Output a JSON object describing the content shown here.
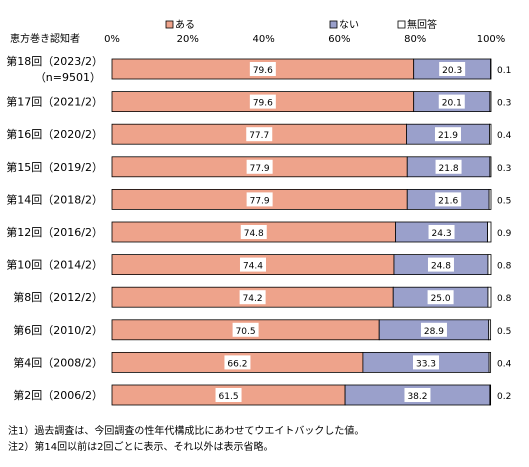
{
  "chart_data": {
    "type": "bar",
    "orientation": "horizontal",
    "stacked": true,
    "title": "",
    "category_header": "恵方巻き認知者",
    "categories": [
      "第18回（2023/2）",
      "第17回（2021/2）",
      "第16回（2020/2）",
      "第15回（2019/2）",
      "第14回（2018/2）",
      "第12回（2016/2）",
      "第10回（2014/2）",
      "第8回（2012/2）",
      "第6回（2010/2）",
      "第4回（2008/2）",
      "第2回（2006/2）"
    ],
    "first_category_sub": "（n=9501）",
    "series": [
      {
        "name": "ある",
        "color": "#eea38b",
        "values": [
          79.6,
          79.6,
          77.7,
          77.9,
          77.9,
          74.8,
          74.4,
          74.2,
          70.5,
          66.2,
          61.5
        ]
      },
      {
        "name": "ない",
        "color": "#9aa0cb",
        "values": [
          20.3,
          20.1,
          21.9,
          21.8,
          21.6,
          24.3,
          24.8,
          25.0,
          28.9,
          33.3,
          38.2
        ]
      },
      {
        "name": "無回答",
        "color": "#ffffff",
        "values": [
          0.1,
          0.3,
          0.4,
          0.3,
          0.5,
          0.9,
          0.8,
          0.8,
          0.5,
          0.4,
          0.2
        ]
      }
    ],
    "value_labels": [
      [
        "79.6",
        "20.3",
        "0.1"
      ],
      [
        "79.6",
        "20.1",
        "0.3"
      ],
      [
        "77.7",
        "21.9",
        "0.4"
      ],
      [
        "77.9",
        "21.8",
        "0.3"
      ],
      [
        "77.9",
        "21.6",
        "0.5"
      ],
      [
        "74.8",
        "24.3",
        "0.9"
      ],
      [
        "74.4",
        "24.8",
        "0.8"
      ],
      [
        "74.2",
        "25.0",
        "0.8"
      ],
      [
        "70.5",
        "28.9",
        "0.5"
      ],
      [
        "66.2",
        "33.3",
        "0.4"
      ],
      [
        "61.5",
        "38.2",
        "0.2"
      ]
    ],
    "xlim": [
      0,
      100
    ],
    "xticks": [
      "0%",
      "20%",
      "40%",
      "60%",
      "80%",
      "100%"
    ],
    "legend_position": "top",
    "grid": false
  },
  "notes": [
    "注1）過去調査は、今回調査の性年代構成比にあわせてウエイトバックした値。",
    "注2）第14回以前は2回ごとに表示、それ以外は表示省略。"
  ]
}
